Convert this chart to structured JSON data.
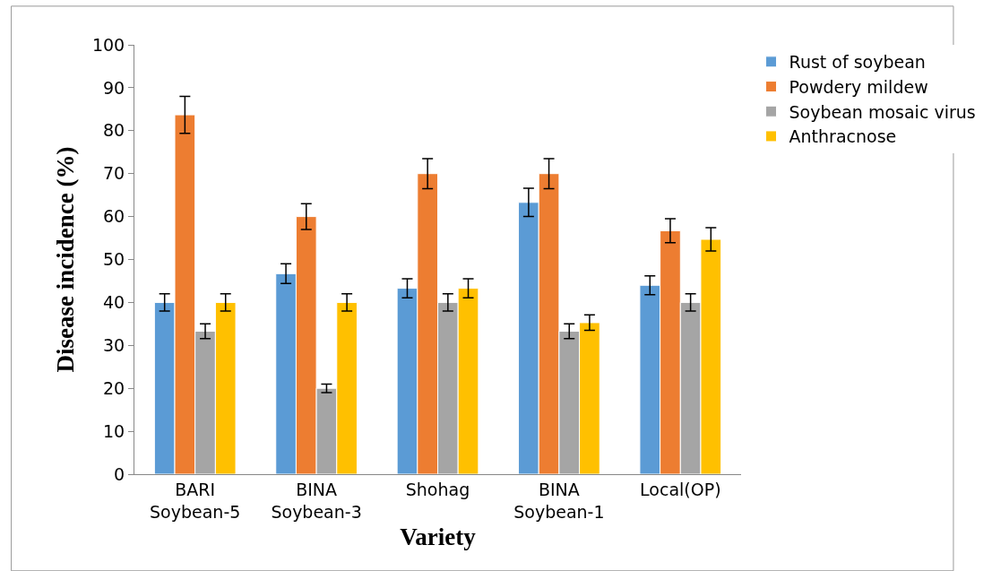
{
  "chart_data": {
    "type": "bar",
    "xlabel": "Variety",
    "ylabel": "Disease incidence (%)",
    "categories": [
      "BARI Soybean-5",
      "BINA Soybean-3",
      "Shohag",
      "BINA Soybean-1",
      "Local(OP)"
    ],
    "series": [
      {
        "name": "Rust of soybean",
        "color": "#5b9bd5",
        "values": [
          40,
          46.7,
          43.3,
          63.3,
          44
        ],
        "errors": [
          2,
          2.3,
          2.2,
          3.3,
          2.2
        ]
      },
      {
        "name": "Powdery mildew",
        "color": "#ed7d31",
        "values": [
          83.7,
          60,
          70,
          70,
          56.7
        ],
        "errors": [
          4.3,
          3,
          3.5,
          3.5,
          2.8
        ]
      },
      {
        "name": "Soybean mosaic virus",
        "color": "#a5a5a5",
        "values": [
          33.3,
          20,
          40,
          33.3,
          40
        ],
        "errors": [
          1.7,
          1,
          2,
          1.7,
          2
        ]
      },
      {
        "name": "Anthracnose",
        "color": "#ffc000",
        "values": [
          40,
          40,
          43.3,
          35.3,
          54.7
        ],
        "errors": [
          2,
          2,
          2.2,
          1.8,
          2.7
        ]
      }
    ],
    "ylim": [
      0,
      100
    ],
    "yticks": [
      0,
      10,
      20,
      30,
      40,
      50,
      60,
      70,
      80,
      90,
      100
    ],
    "grid": false,
    "legend": "right"
  }
}
